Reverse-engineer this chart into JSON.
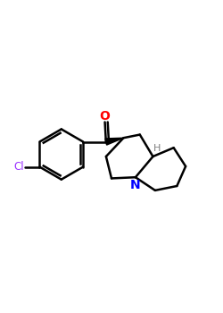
{
  "background_color": "#ffffff",
  "atom_colors": {
    "O": "#ff0000",
    "N": "#0000ff",
    "Cl": "#9b30ff",
    "H": "#808080"
  },
  "bond_color": "#000000",
  "bond_width": 1.8,
  "figsize": [
    2.5,
    3.5
  ],
  "dpi": 100,
  "xlim": [
    0,
    10
  ],
  "ylim": [
    0,
    14
  ]
}
